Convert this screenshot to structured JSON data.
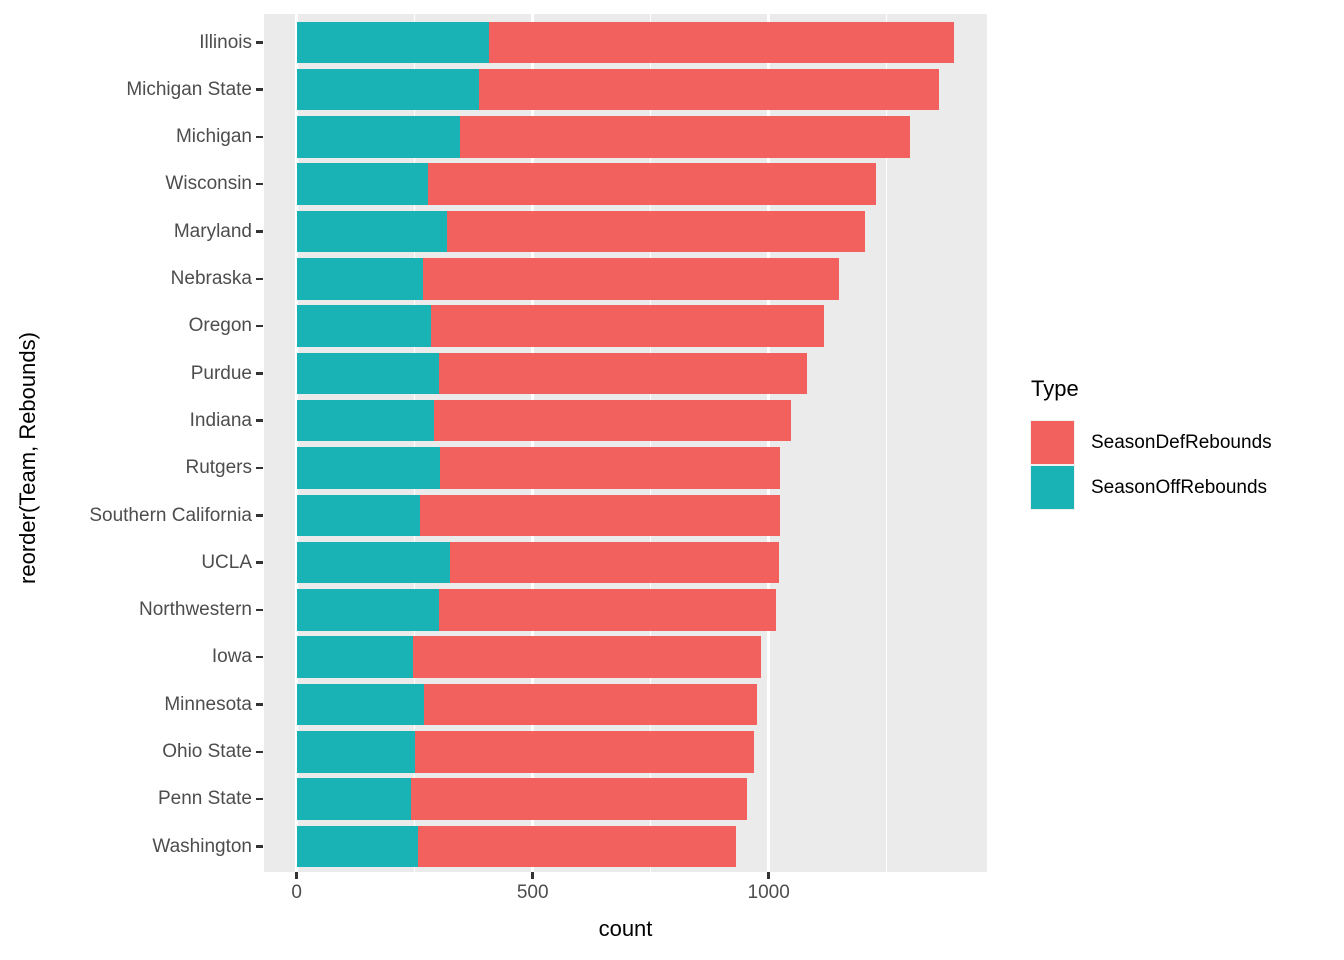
{
  "figure": {
    "background": "#FFFFFF",
    "panel_background": "#EBEBEB",
    "gridline_color": "#FFFFFF",
    "axis_text_color": "#4D4D4D",
    "tick_mark_color": "#333333"
  },
  "chart_data": {
    "type": "bar",
    "orientation": "horizontal",
    "stacked": true,
    "title": "",
    "xlabel": "count",
    "ylabel": "reorder(Team, Rebounds)",
    "categories": [
      "Illinois",
      "Michigan State",
      "Michigan",
      "Wisconsin",
      "Maryland",
      "Nebraska",
      "Oregon",
      "Purdue",
      "Indiana",
      "Rutgers",
      "Southern California",
      "UCLA",
      "Northwestern",
      "Iowa",
      "Minnesota",
      "Ohio State",
      "Penn State",
      "Washington"
    ],
    "series": [
      {
        "name": "SeasonOffRebounds",
        "color": "#1AB3B5",
        "values": [
          408,
          386,
          346,
          278,
          319,
          268,
          284,
          302,
          291,
          304,
          261,
          324,
          302,
          247,
          269,
          251,
          243,
          257
        ]
      },
      {
        "name": "SeasonDefRebounds",
        "color": "#F2615D",
        "values": [
          984,
          974,
          954,
          949,
          885,
          880,
          833,
          779,
          756,
          721,
          762,
          697,
          713,
          737,
          706,
          718,
          712,
          674
        ]
      }
    ],
    "totals": [
      1392,
      1360,
      1300,
      1227,
      1204,
      1148,
      1117,
      1081,
      1047,
      1025,
      1023,
      1021,
      1015,
      984,
      975,
      969,
      955,
      931
    ],
    "x_ticks": [
      0,
      500,
      1000
    ],
    "x_minor_gridlines": [
      250,
      750,
      1250
    ],
    "xlim": [
      0,
      1462
    ],
    "grid": true,
    "legend": {
      "title": "Type",
      "position": "right",
      "entries": [
        {
          "label": "SeasonDefRebounds",
          "color": "#F2615D"
        },
        {
          "label": "SeasonOffRebounds",
          "color": "#1AB3B5"
        }
      ]
    }
  }
}
